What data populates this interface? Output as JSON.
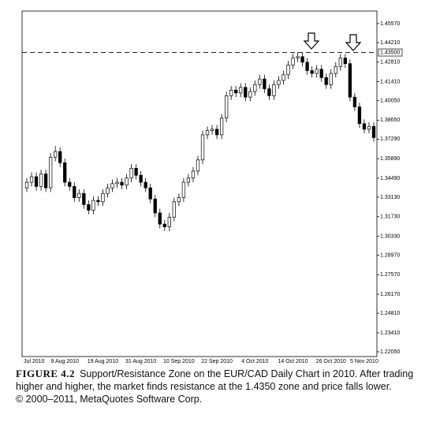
{
  "chart_data": {
    "type": "candlestick",
    "categories": [
      "Jul 2010",
      null,
      null,
      null,
      null,
      null,
      null,
      null,
      "9 Aug 2010",
      null,
      null,
      null,
      null,
      null,
      null,
      null,
      "19 Aug 2010",
      null,
      null,
      null,
      null,
      null,
      null,
      null,
      "31 Aug 2010",
      null,
      null,
      null,
      null,
      null,
      null,
      null,
      "10 Sep 2010",
      null,
      null,
      null,
      null,
      null,
      null,
      null,
      "22 Sep 2010",
      null,
      null,
      null,
      null,
      null,
      null,
      null,
      "4 Oct 2010",
      null,
      null,
      null,
      null,
      null,
      null,
      null,
      "14 Oct 2010",
      null,
      null,
      null,
      null,
      null,
      null,
      null,
      "26 Oct 2010",
      null,
      null,
      null,
      null,
      null,
      null,
      "5 Nov 2010",
      null,
      null
    ],
    "open": [
      1.338,
      1.342,
      1.346,
      1.339,
      1.348,
      1.338,
      1.36,
      1.364,
      1.356,
      1.342,
      1.339,
      1.331,
      1.334,
      1.326,
      1.322,
      1.329,
      1.328,
      1.334,
      1.338,
      1.341,
      1.342,
      1.34,
      1.345,
      1.352,
      1.347,
      1.342,
      1.338,
      1.33,
      1.32,
      1.312,
      1.31,
      1.317,
      1.328,
      1.331,
      1.342,
      1.345,
      1.35,
      1.358,
      1.376,
      1.379,
      1.38,
      1.376,
      1.388,
      1.404,
      1.408,
      1.406,
      1.41,
      1.403,
      1.407,
      1.412,
      1.416,
      1.409,
      1.404,
      1.412,
      1.415,
      1.419,
      1.426,
      1.431,
      1.432,
      1.428,
      1.422,
      1.42,
      1.423,
      1.417,
      1.412,
      1.42,
      1.425,
      1.431,
      1.427,
      1.403,
      1.396,
      1.384,
      1.38,
      1.382
    ],
    "high": [
      1.345,
      1.349,
      1.349,
      1.351,
      1.351,
      1.363,
      1.368,
      1.367,
      1.359,
      1.345,
      1.342,
      1.337,
      1.337,
      1.329,
      1.332,
      1.332,
      1.337,
      1.341,
      1.344,
      1.345,
      1.345,
      1.348,
      1.355,
      1.355,
      1.35,
      1.345,
      1.341,
      1.333,
      1.323,
      1.315,
      1.32,
      1.331,
      1.334,
      1.345,
      1.348,
      1.353,
      1.361,
      1.379,
      1.382,
      1.383,
      1.383,
      1.391,
      1.407,
      1.411,
      1.411,
      1.413,
      1.413,
      1.41,
      1.415,
      1.419,
      1.419,
      1.412,
      1.415,
      1.418,
      1.422,
      1.429,
      1.434,
      1.435,
      1.435,
      1.431,
      1.425,
      1.426,
      1.426,
      1.42,
      1.423,
      1.428,
      1.434,
      1.434,
      1.43,
      1.406,
      1.399,
      1.387,
      1.385,
      1.385
    ],
    "low": [
      1.335,
      1.339,
      1.336,
      1.336,
      1.335,
      1.335,
      1.357,
      1.353,
      1.339,
      1.336,
      1.328,
      1.328,
      1.323,
      1.319,
      1.319,
      1.325,
      1.325,
      1.331,
      1.335,
      1.338,
      1.337,
      1.337,
      1.342,
      1.344,
      1.339,
      1.335,
      1.327,
      1.317,
      1.309,
      1.307,
      1.307,
      1.314,
      1.325,
      1.328,
      1.339,
      1.342,
      1.347,
      1.355,
      1.373,
      1.376,
      1.373,
      1.373,
      1.385,
      1.401,
      1.403,
      1.403,
      1.4,
      1.4,
      1.404,
      1.409,
      1.406,
      1.401,
      1.401,
      1.409,
      1.412,
      1.416,
      1.423,
      1.428,
      1.425,
      1.419,
      1.417,
      1.417,
      1.414,
      1.409,
      1.409,
      1.417,
      1.422,
      1.424,
      1.4,
      1.393,
      1.381,
      1.377,
      1.377,
      1.371
    ],
    "close": [
      1.342,
      1.346,
      1.339,
      1.348,
      1.338,
      1.36,
      1.364,
      1.356,
      1.342,
      1.339,
      1.331,
      1.334,
      1.326,
      1.322,
      1.329,
      1.328,
      1.334,
      1.338,
      1.341,
      1.342,
      1.34,
      1.345,
      1.352,
      1.347,
      1.342,
      1.338,
      1.33,
      1.32,
      1.312,
      1.31,
      1.317,
      1.328,
      1.331,
      1.342,
      1.345,
      1.35,
      1.358,
      1.376,
      1.379,
      1.38,
      1.376,
      1.388,
      1.404,
      1.408,
      1.406,
      1.41,
      1.403,
      1.407,
      1.412,
      1.416,
      1.409,
      1.404,
      1.412,
      1.415,
      1.419,
      1.426,
      1.431,
      1.432,
      1.428,
      1.422,
      1.42,
      1.423,
      1.417,
      1.412,
      1.42,
      1.425,
      1.431,
      1.427,
      1.403,
      1.396,
      1.384,
      1.38,
      1.382,
      1.374
    ],
    "up_color": "#ffffff",
    "down_color": "#000000",
    "ylim": [
      1.2171,
      1.4647
    ],
    "yticks": [
      {
        "value": 1.4557,
        "label": "1.45570"
      },
      {
        "value": 1.4421,
        "label": "1.44210"
      },
      {
        "value": 1.4281,
        "label": "1.42810"
      },
      {
        "value": 1.4141,
        "label": "1.41410"
      },
      {
        "value": 1.4005,
        "label": "1.40050"
      },
      {
        "value": 1.3865,
        "label": "1.38650"
      },
      {
        "value": 1.3729,
        "label": "1.37290"
      },
      {
        "value": 1.3589,
        "label": "1.35890"
      },
      {
        "value": 1.3449,
        "label": "1.34490"
      },
      {
        "value": 1.3313,
        "label": "1.33130"
      },
      {
        "value": 1.3173,
        "label": "1.31730"
      },
      {
        "value": 1.3033,
        "label": "1.30330"
      },
      {
        "value": 1.2897,
        "label": "1.28970"
      },
      {
        "value": 1.2757,
        "label": "1.27570"
      },
      {
        "value": 1.2617,
        "label": "1.26170"
      },
      {
        "value": 1.2481,
        "label": "1.24810"
      },
      {
        "value": 1.2341,
        "label": "1.23410"
      },
      {
        "value": 1.2205,
        "label": "1.22050"
      }
    ],
    "resistance": {
      "value": 1.435,
      "label": "1.43500"
    },
    "figure_label": "FIGURE 4.2",
    "caption": "Support/Resistance Zone on the EUR/CAD Daily Chart in 2010. After trading higher and higher, the market finds resistance at the 1.4350 zone and price falls lower.",
    "credit": "© 2000–2011, MetaQuotes Software Corp."
  }
}
